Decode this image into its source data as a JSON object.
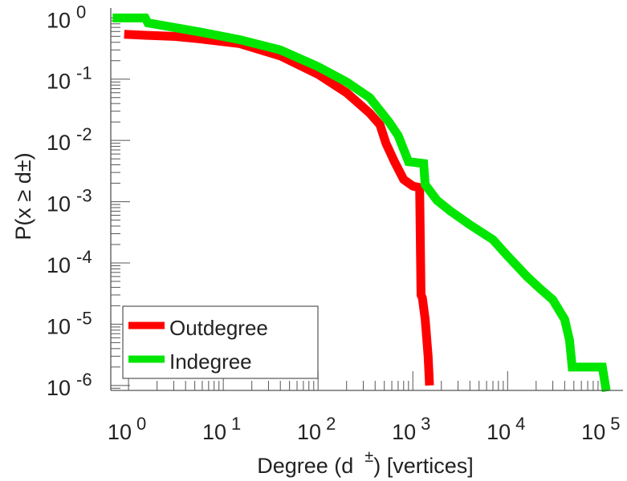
{
  "chart_data": {
    "type": "line",
    "title": "",
    "xlabel": "Degree (d ±) [vertices]",
    "xlabel_parts": {
      "main": "Degree (d",
      "sup": "±",
      "tail": ") [vertices]"
    },
    "ylabel": "P(x ≥ d±)",
    "ylabel_parts": {
      "main": "P(x ≥ d",
      "sup": "±",
      "tail": ")"
    },
    "xscale": "log",
    "yscale": "log",
    "xlim": [
      0.65,
      165000
    ],
    "ylim": [
      8.3e-07,
      1.45
    ],
    "grid": false,
    "legend_position": "bottom-left",
    "x_ticks": [
      {
        "base": "10",
        "exp": "0",
        "v": 1
      },
      {
        "base": "10",
        "exp": "1",
        "v": 10
      },
      {
        "base": "10",
        "exp": "2",
        "v": 100
      },
      {
        "base": "10",
        "exp": "3",
        "v": 1000
      },
      {
        "base": "10",
        "exp": "4",
        "v": 10000
      },
      {
        "base": "10",
        "exp": "5",
        "v": 100000
      }
    ],
    "y_ticks": [
      {
        "base": "10",
        "exp": "0",
        "v": 1
      },
      {
        "base": "10",
        "exp": "-1",
        "v": 0.1
      },
      {
        "base": "10",
        "exp": "-2",
        "v": 0.01
      },
      {
        "base": "10",
        "exp": "-3",
        "v": 0.001
      },
      {
        "base": "10",
        "exp": "-4",
        "v": 0.0001
      },
      {
        "base": "10",
        "exp": "-5",
        "v": 1e-05
      },
      {
        "base": "10",
        "exp": "-6",
        "v": 1e-06
      }
    ],
    "series": [
      {
        "name": "Outdegree",
        "color": "#ff0000",
        "x": [
          0.9,
          1.5,
          3,
          6,
          15,
          40,
          100,
          200,
          350,
          450,
          520,
          640,
          800,
          1000,
          1180,
          1220,
          1260,
          1350,
          1450,
          1500
        ],
        "y": [
          0.54,
          0.52,
          0.5,
          0.45,
          0.38,
          0.24,
          0.12,
          0.06,
          0.028,
          0.018,
          0.009,
          0.0045,
          0.0023,
          0.0018,
          0.0017,
          3e-05,
          2.7e-05,
          1.2e-05,
          3e-06,
          1e-06
        ]
      },
      {
        "name": "Indegree",
        "color": "#00e600",
        "x": [
          0.68,
          1.5,
          1.6,
          3,
          6,
          15,
          40,
          100,
          200,
          350,
          500,
          560,
          700,
          900,
          1300,
          1350,
          1800,
          2500,
          4000,
          7000,
          10000,
          16000,
          22000,
          30000,
          40000,
          45000,
          48000,
          100000,
          110000
        ],
        "y": [
          1.0,
          1.0,
          0.83,
          0.7,
          0.58,
          0.44,
          0.3,
          0.16,
          0.09,
          0.05,
          0.025,
          0.02,
          0.012,
          0.0045,
          0.0042,
          0.0019,
          0.00105,
          0.0007,
          0.00042,
          0.00024,
          0.00013,
          6e-05,
          3.8e-05,
          2.5e-05,
          1.2e-05,
          5.5e-06,
          2e-06,
          2e-06,
          8e-07
        ]
      }
    ]
  }
}
